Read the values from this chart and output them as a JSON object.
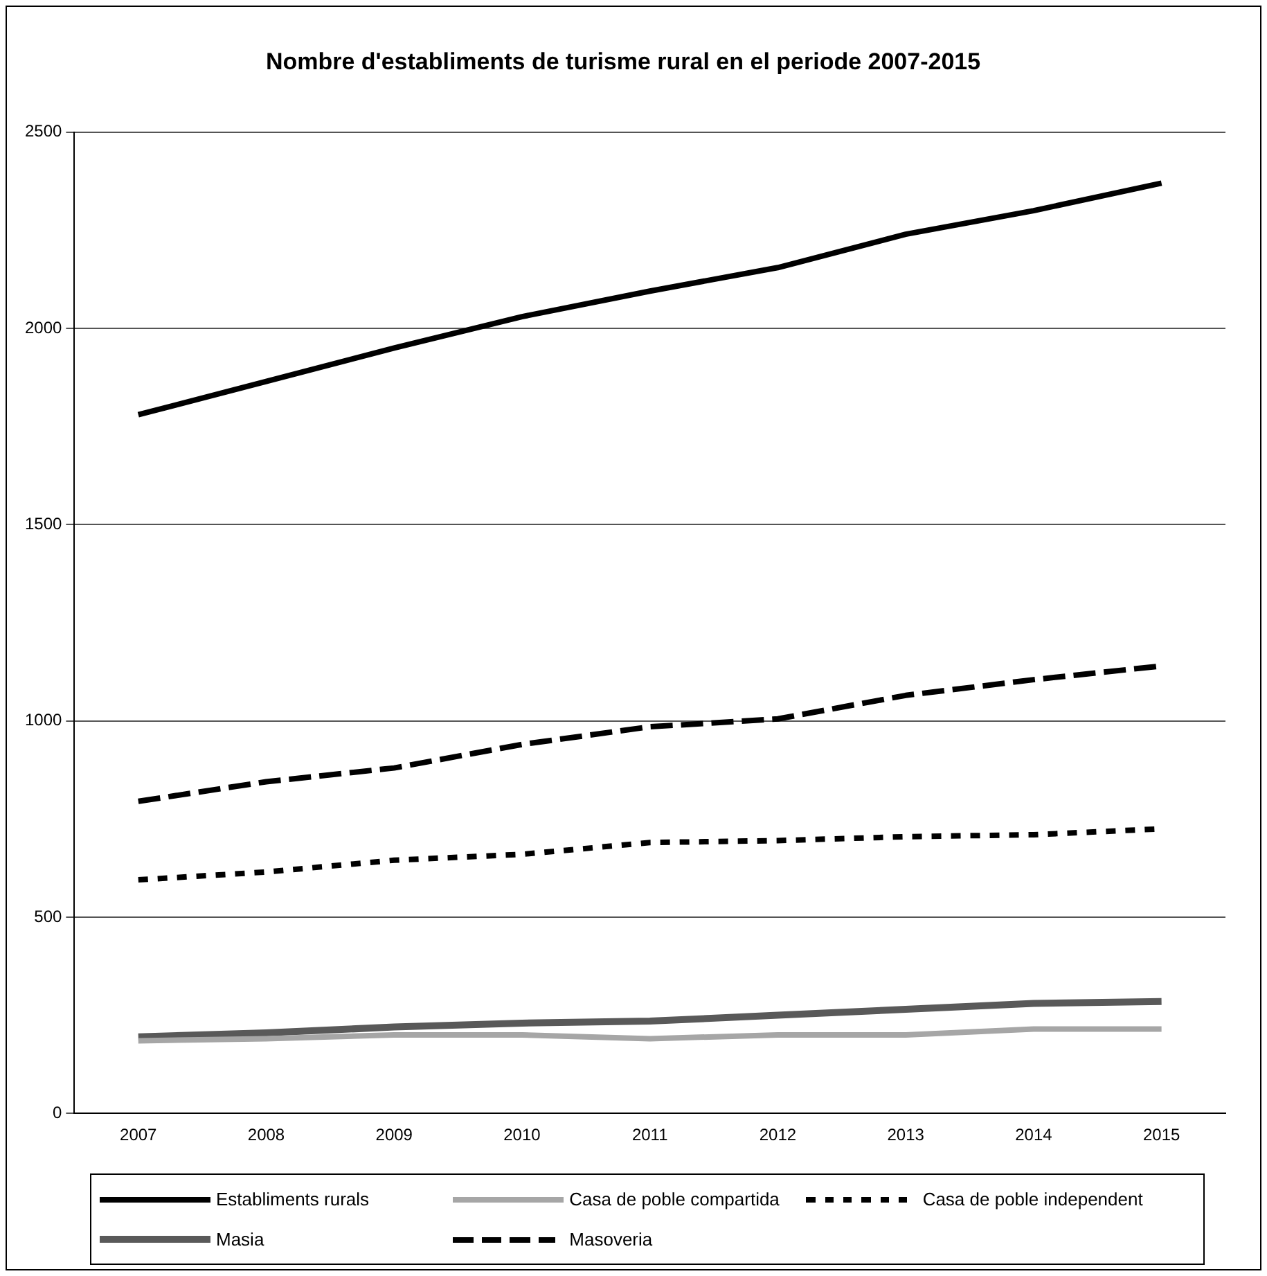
{
  "chart_data": {
    "type": "line",
    "title": "Nombre d'establiments de turisme rural en el periode 2007-2015",
    "categories": [
      "2007",
      "2008",
      "2009",
      "2010",
      "2011",
      "2012",
      "2013",
      "2014",
      "2015"
    ],
    "series": [
      {
        "name": "Establiments rurals",
        "color": "#000000",
        "line_style": "solid",
        "values": [
          1780,
          1865,
          1950,
          2030,
          2095,
          2155,
          2240,
          2300,
          2370
        ]
      },
      {
        "name": "Casa de poble compartida",
        "color": "#a6a6a6",
        "line_style": "solid",
        "values": [
          185,
          190,
          200,
          200,
          190,
          200,
          200,
          215,
          215
        ]
      },
      {
        "name": "Casa de poble independent",
        "color": "#000000",
        "line_style": "dotted",
        "values": [
          595,
          615,
          645,
          660,
          690,
          695,
          705,
          710,
          725
        ]
      },
      {
        "name": "Masia",
        "color": "#595959",
        "line_style": "solid",
        "values": [
          195,
          205,
          220,
          230,
          235,
          250,
          265,
          280,
          285
        ]
      },
      {
        "name": "Masoveria",
        "color": "#000000",
        "line_style": "dashed",
        "values": [
          795,
          845,
          880,
          940,
          985,
          1005,
          1065,
          1105,
          1140
        ]
      }
    ],
    "ylim": [
      0,
      2500
    ],
    "yticks": [
      0,
      500,
      1000,
      1500,
      2000,
      2500
    ],
    "grid": "y",
    "legend": "bottom",
    "marker": "none"
  }
}
